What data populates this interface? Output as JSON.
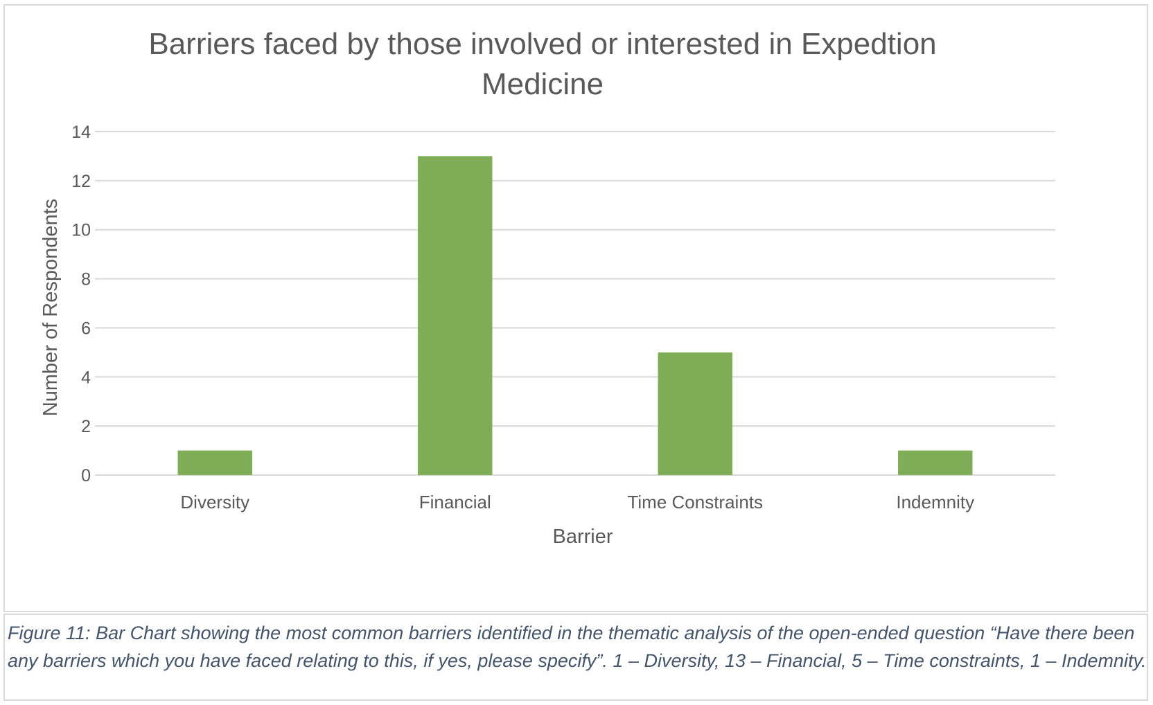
{
  "chart_data": {
    "type": "bar",
    "title": "Barriers faced by those involved or interested in Expedtion Medicine",
    "xlabel": "Barrier",
    "ylabel": "Number of Respondents",
    "categories": [
      "Diversity",
      "Financial",
      "Time Constraints",
      "Indemnity"
    ],
    "values": [
      1,
      13,
      5,
      1
    ],
    "ylim": [
      0,
      14
    ],
    "yticks": [
      "0",
      "2",
      "4",
      "6",
      "8",
      "10",
      "12",
      "14"
    ],
    "grid": true,
    "legend": "none",
    "bar_color": "#7fac57"
  },
  "caption": {
    "text": "Figure 11: Bar Chart showing the most common barriers identified in the thematic analysis of the open-ended question “Have there been any barriers which you have faced relating to this, if yes, please specify”. 1 – Diversity, 13 – Financial, 5 – Time constraints, 1 – Indemnity."
  }
}
